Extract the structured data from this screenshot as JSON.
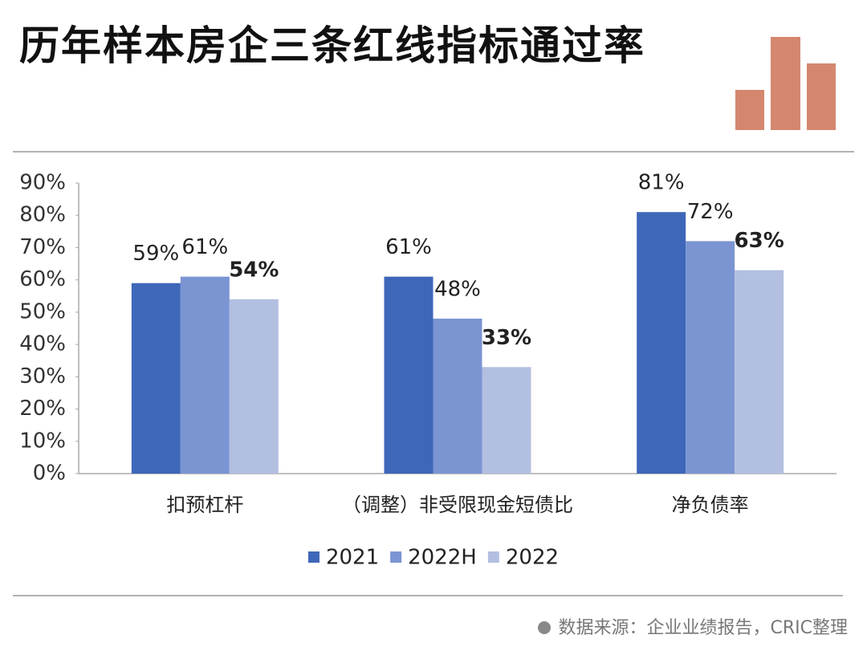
{
  "chart_data": {
    "type": "bar",
    "title": "历年样本房企三条红线指标通过率",
    "categories": [
      "扣预杠杆",
      "（调整）非受限现金短债比",
      "净负债率"
    ],
    "series": [
      {
        "name": "2021",
        "color": "#3f67b9",
        "values": [
          59,
          61,
          81
        ],
        "value_labels": [
          "59%",
          "61%",
          "81%"
        ]
      },
      {
        "name": "2022H",
        "color": "#7b95d3",
        "values": [
          61,
          48,
          72
        ],
        "value_labels": [
          "61%",
          "48%",
          "72%"
        ]
      },
      {
        "name": "2022",
        "color": "#b3bfe1",
        "values": [
          54,
          33,
          63
        ],
        "value_labels": [
          "54%",
          "33%",
          "63%"
        ]
      }
    ],
    "ylim": [
      0,
      90
    ],
    "yticks": [
      {
        "value": 0,
        "label": "0%"
      },
      {
        "value": 10,
        "label": "10%"
      },
      {
        "value": 20,
        "label": "20%"
      },
      {
        "value": 30,
        "label": "30%"
      },
      {
        "value": 40,
        "label": "40%"
      },
      {
        "value": 50,
        "label": "50%"
      },
      {
        "value": 60,
        "label": "60%"
      },
      {
        "value": 70,
        "label": "70%"
      },
      {
        "value": 80,
        "label": "80%"
      },
      {
        "value": 90,
        "label": "90%"
      }
    ],
    "source": "数据来源：企业业绩报告，CRIC整理"
  }
}
